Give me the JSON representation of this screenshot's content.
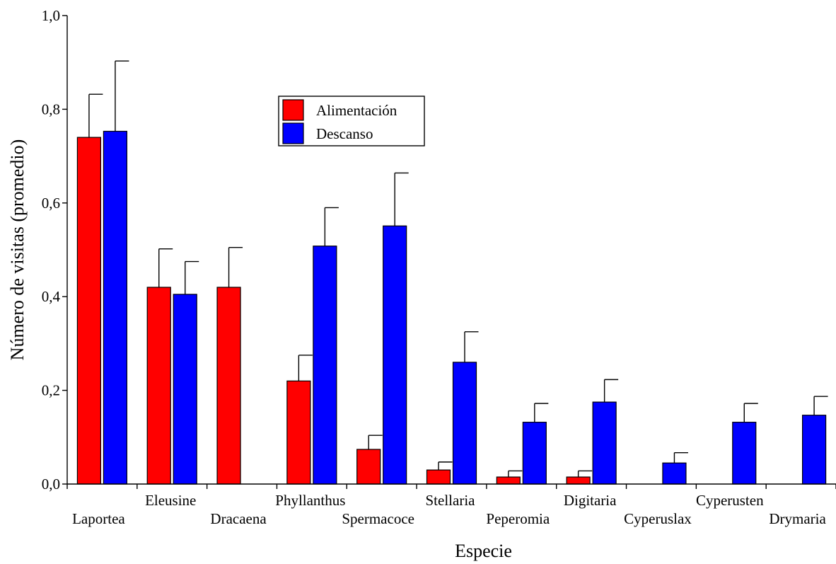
{
  "chart_data": {
    "type": "bar",
    "xlabel": "Especie",
    "ylabel": "Número de visitas (promedio)",
    "ylim": [
      0,
      1.0
    ],
    "yticks": [
      {
        "value": 0.0,
        "label": "0,0"
      },
      {
        "value": 0.2,
        "label": "0,2"
      },
      {
        "value": 0.4,
        "label": "0,4"
      },
      {
        "value": 0.6,
        "label": "0,6"
      },
      {
        "value": 0.8,
        "label": "0,8"
      },
      {
        "value": 1.0,
        "label": "1,0"
      }
    ],
    "grid": false,
    "legend": "upper-center",
    "categories": [
      "Laportea",
      "Eleusine",
      "Dracaena",
      "Phyllanthus",
      "Spermacoce",
      "Stellaria",
      "Peperomia",
      "Digitaria",
      "Cyperuslax",
      "Cyperusten",
      "Drymaria"
    ],
    "series": [
      {
        "name": "Alimentación",
        "color": "#ff0000",
        "values": [
          0.74,
          0.42,
          0.42,
          0.22,
          0.074,
          0.03,
          0.015,
          0.015,
          null,
          null,
          null
        ],
        "errors": [
          0.092,
          0.082,
          0.085,
          0.055,
          0.03,
          0.017,
          0.013,
          0.013,
          null,
          null,
          null
        ]
      },
      {
        "name": "Descanso",
        "color": "#0000ff",
        "values": [
          0.753,
          0.405,
          null,
          0.508,
          0.551,
          0.26,
          0.132,
          0.175,
          0.045,
          0.132,
          0.147
        ],
        "errors": [
          0.15,
          0.07,
          null,
          0.082,
          0.113,
          0.065,
          0.04,
          0.048,
          0.022,
          0.04,
          0.04
        ]
      }
    ]
  }
}
